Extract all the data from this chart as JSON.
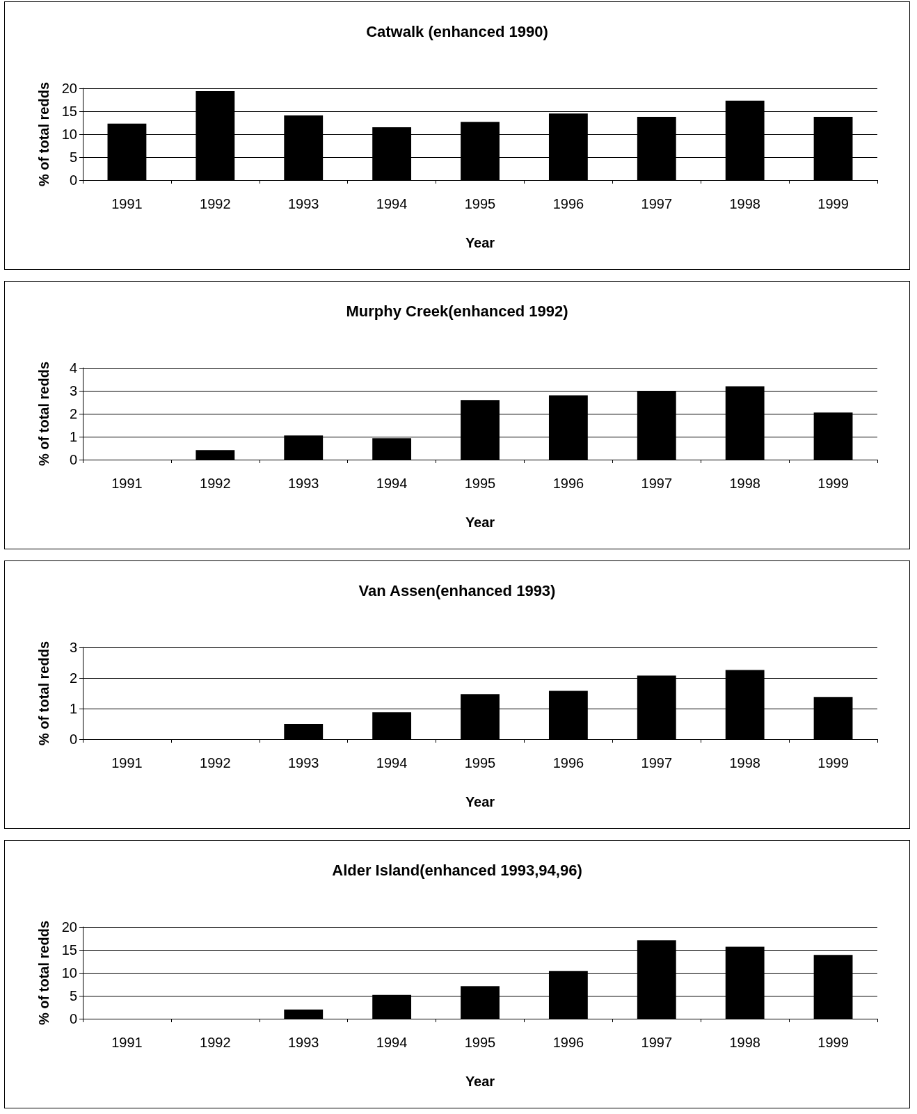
{
  "chart_data": [
    {
      "type": "bar",
      "title": "Catwalk (enhanced 1990)",
      "xlabel": "Year",
      "ylabel": "% of total redds",
      "categories": [
        "1991",
        "1992",
        "1993",
        "1994",
        "1995",
        "1996",
        "1997",
        "1998",
        "1999"
      ],
      "values": [
        12.3,
        19.4,
        14.1,
        11.5,
        12.7,
        14.5,
        13.8,
        17.3,
        13.8
      ],
      "color": "#000000",
      "ylim": [
        0,
        20
      ],
      "yticks": [
        0,
        5,
        10,
        15,
        20
      ],
      "grid": "y"
    },
    {
      "type": "bar",
      "title": "Murphy Creek(enhanced 1992)",
      "xlabel": "Year",
      "ylabel": "% of total redds",
      "categories": [
        "1991",
        "1992",
        "1993",
        "1994",
        "1995",
        "1996",
        "1997",
        "1998",
        "1999"
      ],
      "values": [
        0,
        0.42,
        1.05,
        0.93,
        2.6,
        2.8,
        3.0,
        3.2,
        2.05
      ],
      "color": "#000000",
      "ylim": [
        0,
        4
      ],
      "yticks": [
        0,
        1,
        2,
        3,
        4
      ],
      "grid": "y"
    },
    {
      "type": "bar",
      "title": "Van Assen(enhanced 1993)",
      "xlabel": "Year",
      "ylabel": "% of total redds",
      "categories": [
        "1991",
        "1992",
        "1993",
        "1994",
        "1995",
        "1996",
        "1997",
        "1998",
        "1999"
      ],
      "values": [
        0,
        0,
        0.5,
        0.88,
        1.47,
        1.58,
        2.08,
        2.26,
        1.38
      ],
      "color": "#000000",
      "ylim": [
        0,
        3
      ],
      "yticks": [
        0,
        1,
        2,
        3
      ],
      "grid": "y"
    },
    {
      "type": "bar",
      "title": "Alder Island(enhanced 1993,94,96)",
      "xlabel": "Year",
      "ylabel": "% of total redds",
      "categories": [
        "1991",
        "1992",
        "1993",
        "1994",
        "1995",
        "1996",
        "1997",
        "1998",
        "1999"
      ],
      "values": [
        0,
        0,
        2.0,
        5.2,
        7.1,
        10.4,
        17.1,
        15.7,
        13.9
      ],
      "color": "#000000",
      "ylim": [
        0,
        20
      ],
      "yticks": [
        0,
        5,
        10,
        15,
        20
      ],
      "grid": "y"
    }
  ]
}
